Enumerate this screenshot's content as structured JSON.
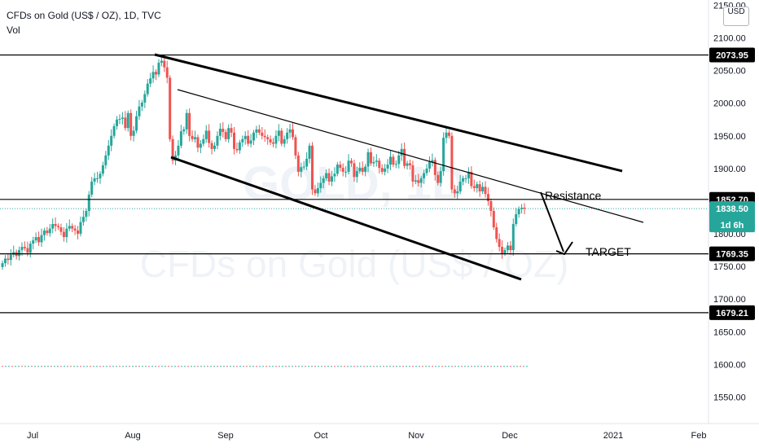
{
  "header": {
    "title": "CFDs on Gold (US$ / OZ), 1D, TVC",
    "volume_label": "Vol",
    "currency_button": "USD"
  },
  "watermark": {
    "symbol": "GOLD, 1D",
    "name": "CFDs on Gold (US$ / OZ)"
  },
  "colors": {
    "up": "#26a69a",
    "down": "#ef5350",
    "lines": "#000000",
    "last_price": "#26a69a",
    "countdown": "#2aa198"
  },
  "chart_data": {
    "type": "candlestick",
    "y_ticks": [
      "2150.00",
      "2100.00",
      "2050.00",
      "2000.00",
      "1950.00",
      "1900.00",
      "1850.00",
      "1800.00",
      "1750.00",
      "1700.00",
      "1650.00",
      "1600.00",
      "1550.00"
    ],
    "ylim": [
      1500,
      2155
    ],
    "x_labels": [
      "Jul",
      "Aug",
      "Sep",
      "Oct",
      "Nov",
      "Dec",
      "2021",
      "Feb"
    ],
    "horizontal_levels": [
      {
        "label": "2073.95",
        "value": 2073.95
      },
      {
        "label": "1852.70",
        "value": 1852.7
      },
      {
        "label": "1769.35",
        "value": 1769.35
      },
      {
        "label": "1679.21",
        "value": 1679.21
      }
    ],
    "last_price": {
      "label": "1838.50",
      "value": 1838.5,
      "countdown": "1d 6h"
    },
    "annotations": [
      "Resistance",
      "TARGET"
    ],
    "candles_close": [
      1755,
      1762,
      1760,
      1768,
      1772,
      1766,
      1775,
      1780,
      1778,
      1771,
      1785,
      1790,
      1795,
      1787,
      1798,
      1805,
      1801,
      1808,
      1815,
      1812,
      1810,
      1803,
      1795,
      1808,
      1812,
      1808,
      1805,
      1800,
      1818,
      1826,
      1835,
      1860,
      1880,
      1885,
      1885,
      1892,
      1905,
      1920,
      1935,
      1950,
      1965,
      1975,
      1976,
      1978,
      1962,
      1985,
      1950,
      1958,
      1980,
      1995,
      2001,
      2014,
      2030,
      2038,
      2048,
      2044,
      2062,
      2065,
      2055,
      2039,
      1945,
      1912,
      1920,
      1935,
      1957,
      1960,
      1985,
      1950,
      1945,
      1948,
      1932,
      1938,
      1945,
      1958,
      1939,
      1930,
      1935,
      1950,
      1961,
      1956,
      1945,
      1962,
      1955,
      1930,
      1928,
      1940,
      1945,
      1950,
      1938,
      1943,
      1955,
      1960,
      1955,
      1950,
      1948,
      1945,
      1940,
      1938,
      1950,
      1958,
      1938,
      1945,
      1955,
      1960,
      1948,
      1920,
      1895,
      1902,
      1903,
      1915,
      1935,
      1868,
      1862,
      1870,
      1878,
      1885,
      1893,
      1880,
      1888,
      1892,
      1906,
      1901,
      1895,
      1895,
      1912,
      1908,
      1887,
      1896,
      1901,
      1895,
      1903,
      1925,
      1908,
      1910,
      1912,
      1901,
      1895,
      1900,
      1906,
      1918,
      1906,
      1907,
      1920,
      1930,
      1904,
      1908,
      1905,
      1880,
      1882,
      1878,
      1885,
      1893,
      1900,
      1910,
      1913,
      1890,
      1878,
      1896,
      1947,
      1955,
      1950,
      1868,
      1862,
      1865,
      1880,
      1885,
      1885,
      1895,
      1873,
      1870,
      1876,
      1865,
      1872,
      1861,
      1850,
      1835,
      1810,
      1792,
      1780,
      1770,
      1775,
      1782,
      1775,
      1815,
      1830,
      1838,
      1840,
      1838.5
    ]
  }
}
